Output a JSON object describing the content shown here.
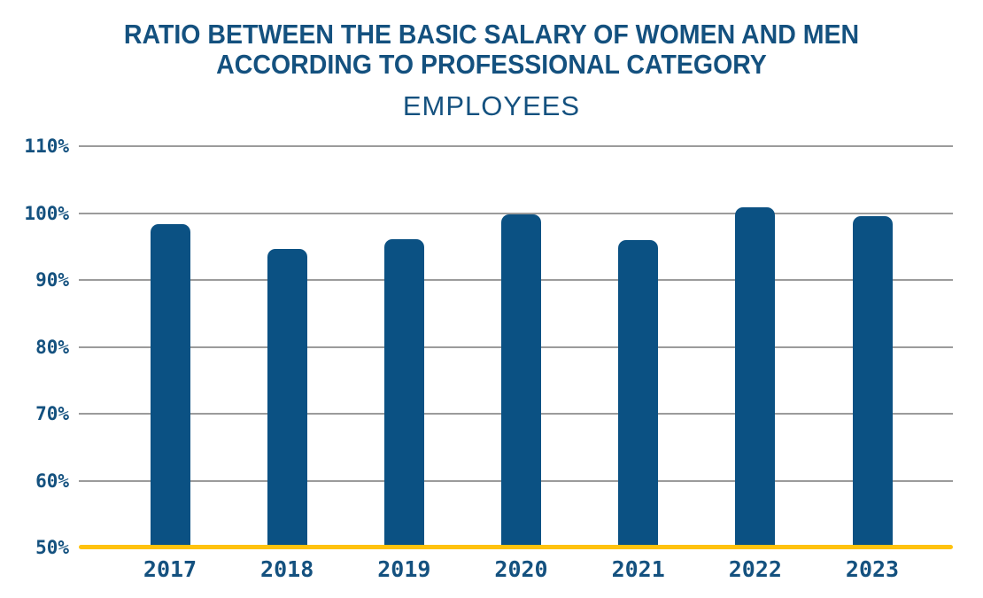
{
  "chart_data": {
    "type": "bar",
    "title": "RATIO BETWEEN THE BASIC SALARY OF WOMEN AND MEN ACCORDING TO PROFESSIONAL CATEGORY",
    "subtitle": "EMPLOYEES",
    "categories": [
      "2017",
      "2018",
      "2019",
      "2020",
      "2021",
      "2022",
      "2023"
    ],
    "values": [
      98.3,
      94.6,
      96.1,
      99.8,
      95.9,
      100.9,
      99.6
    ],
    "unit": "%",
    "xlabel": "",
    "ylabel": "",
    "ylim": [
      50,
      110
    ],
    "y_tick_step": 10,
    "y_tick_labels": [
      "110%",
      "100%",
      "90%",
      "80%",
      "70%",
      "60%",
      "50%"
    ],
    "grid": "horizontal",
    "legend": "none",
    "colors": {
      "bar": "#0B5183",
      "text": "#14517F",
      "gridline": "#9B9B9B",
      "baseline": "#FFC20E",
      "background": "#FFFFFF"
    }
  }
}
